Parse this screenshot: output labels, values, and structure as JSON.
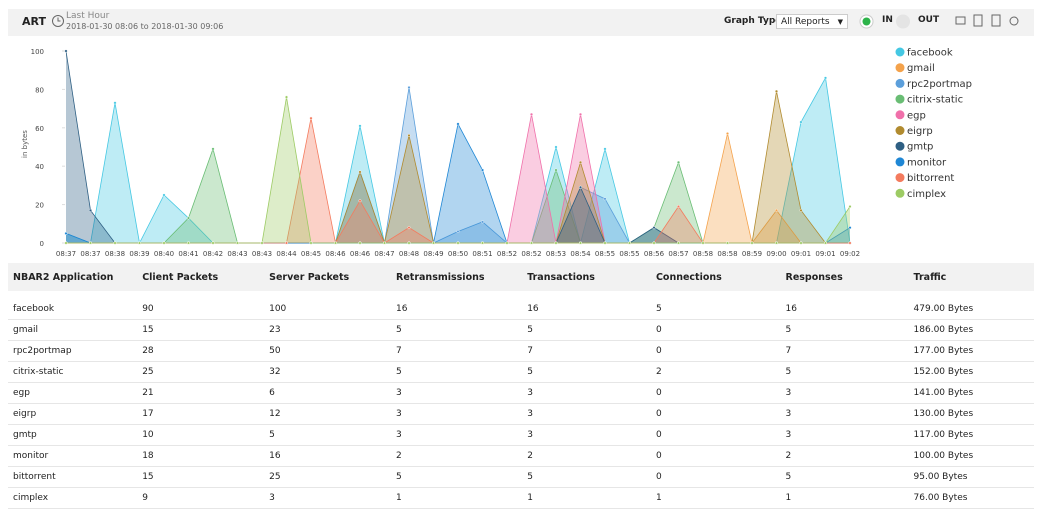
{
  "header": {
    "title": "ART",
    "period": "Last Hour",
    "range": "2018-01-30 08:06 to 2018-01-30 09:06",
    "graph_type_label": "Graph Type",
    "graph_type": "All Reports",
    "in_label": "IN",
    "out_label": "OUT"
  },
  "chart_data": {
    "type": "area",
    "y_label": "in bytes",
    "ylim": [
      0,
      100
    ],
    "yticks": [
      0,
      20,
      40,
      60,
      80,
      100
    ],
    "categories": [
      "08:37",
      "08:37",
      "08:38",
      "08:39",
      "08:40",
      "08:41",
      "08:42",
      "08:43",
      "08:43",
      "08:44",
      "08:45",
      "08:46",
      "08:46",
      "08:47",
      "08:48",
      "08:49",
      "08:50",
      "08:51",
      "08:52",
      "08:52",
      "08:53",
      "08:54",
      "08:55",
      "08:55",
      "08:56",
      "08:57",
      "08:58",
      "08:58",
      "08:59",
      "09:00",
      "09:01",
      "09:01",
      "09:02"
    ],
    "series": [
      {
        "name": "facebook",
        "color": "#45c8e3",
        "values": [
          5,
          0,
          73,
          0,
          25,
          13,
          0,
          0,
          0,
          0,
          0,
          0,
          61,
          0,
          0,
          0,
          0,
          0,
          0,
          0,
          50,
          0,
          49,
          0,
          0,
          0,
          0,
          0,
          0,
          0,
          63,
          86,
          0
        ]
      },
      {
        "name": "gmail",
        "color": "#f4a24b",
        "values": [
          0,
          0,
          0,
          0,
          0,
          0,
          0,
          0,
          0,
          0,
          0,
          0,
          0,
          0,
          0,
          0,
          0,
          0,
          0,
          0,
          0,
          0,
          0,
          0,
          0,
          0,
          0,
          57,
          0,
          17,
          0,
          0,
          0
        ]
      },
      {
        "name": "rpc2portmap",
        "color": "#5c9fdb",
        "values": [
          0,
          0,
          0,
          0,
          0,
          0,
          0,
          0,
          0,
          0,
          0,
          0,
          37,
          0,
          81,
          0,
          6,
          11,
          0,
          0,
          0,
          29,
          23,
          0,
          8,
          0,
          0,
          0,
          0,
          0,
          0,
          0,
          0
        ]
      },
      {
        "name": "citrix-static",
        "color": "#69bd74",
        "values": [
          0,
          0,
          0,
          0,
          0,
          13,
          49,
          0,
          0,
          0,
          0,
          0,
          0,
          0,
          0,
          0,
          0,
          0,
          0,
          0,
          38,
          0,
          0,
          0,
          8,
          42,
          0,
          0,
          0,
          0,
          0,
          0,
          0
        ]
      },
      {
        "name": "egp",
        "color": "#f070aa",
        "values": [
          0,
          0,
          0,
          0,
          0,
          0,
          0,
          0,
          0,
          0,
          0,
          0,
          0,
          0,
          0,
          0,
          0,
          0,
          0,
          67,
          0,
          67,
          0,
          0,
          0,
          0,
          0,
          0,
          0,
          0,
          0,
          0,
          0
        ]
      },
      {
        "name": "eigrp",
        "color": "#b18b2f",
        "values": [
          0,
          0,
          0,
          0,
          0,
          0,
          0,
          0,
          0,
          0,
          0,
          0,
          37,
          0,
          56,
          0,
          0,
          0,
          0,
          0,
          0,
          42,
          0,
          0,
          0,
          0,
          0,
          0,
          0,
          79,
          17,
          0,
          0
        ]
      },
      {
        "name": "gmtp",
        "color": "#2e5f83",
        "values": [
          100,
          17,
          0,
          0,
          0,
          0,
          0,
          0,
          0,
          0,
          0,
          0,
          0,
          0,
          0,
          0,
          0,
          0,
          0,
          0,
          0,
          29,
          0,
          0,
          8,
          0,
          0,
          0,
          0,
          0,
          0,
          0,
          0
        ]
      },
      {
        "name": "monitor",
        "color": "#1f87d5",
        "values": [
          5,
          0,
          0,
          0,
          0,
          0,
          0,
          0,
          0,
          0,
          0,
          0,
          0,
          0,
          0,
          0,
          62,
          38,
          0,
          0,
          0,
          0,
          0,
          0,
          0,
          0,
          0,
          0,
          0,
          0,
          0,
          0,
          8
        ]
      },
      {
        "name": "bittorrent",
        "color": "#f47b5e",
        "values": [
          0,
          0,
          0,
          0,
          0,
          0,
          0,
          0,
          0,
          0,
          65,
          0,
          22,
          0,
          8,
          0,
          0,
          0,
          0,
          0,
          0,
          0,
          0,
          0,
          0,
          19,
          0,
          0,
          0,
          0,
          0,
          0,
          0
        ]
      },
      {
        "name": "cimplex",
        "color": "#9dcb64",
        "values": [
          0,
          0,
          0,
          0,
          0,
          0,
          0,
          0,
          0,
          76,
          0,
          0,
          0,
          0,
          0,
          0,
          0,
          0,
          0,
          0,
          0,
          0,
          0,
          0,
          0,
          0,
          0,
          0,
          0,
          0,
          0,
          0,
          19
        ]
      }
    ]
  },
  "table": {
    "columns": [
      "NBAR2 Application",
      "Client Packets",
      "Server Packets",
      "Retransmissions",
      "Transactions",
      "Connections",
      "Responses",
      "Traffic"
    ],
    "rows": [
      [
        "facebook",
        90,
        100,
        16,
        16,
        5,
        16,
        "479.00 Bytes"
      ],
      [
        "gmail",
        15,
        23,
        5,
        5,
        0,
        5,
        "186.00 Bytes"
      ],
      [
        "rpc2portmap",
        28,
        50,
        7,
        7,
        0,
        7,
        "177.00 Bytes"
      ],
      [
        "citrix-static",
        25,
        32,
        5,
        5,
        2,
        5,
        "152.00 Bytes"
      ],
      [
        "egp",
        21,
        6,
        3,
        3,
        0,
        3,
        "141.00 Bytes"
      ],
      [
        "eigrp",
        17,
        12,
        3,
        3,
        0,
        3,
        "130.00 Bytes"
      ],
      [
        "gmtp",
        10,
        5,
        3,
        3,
        0,
        3,
        "117.00 Bytes"
      ],
      [
        "monitor",
        18,
        16,
        2,
        2,
        0,
        2,
        "100.00 Bytes"
      ],
      [
        "bittorrent",
        15,
        25,
        5,
        5,
        0,
        5,
        "95.00 Bytes"
      ],
      [
        "cimplex",
        9,
        3,
        1,
        1,
        1,
        1,
        "76.00 Bytes"
      ]
    ]
  }
}
